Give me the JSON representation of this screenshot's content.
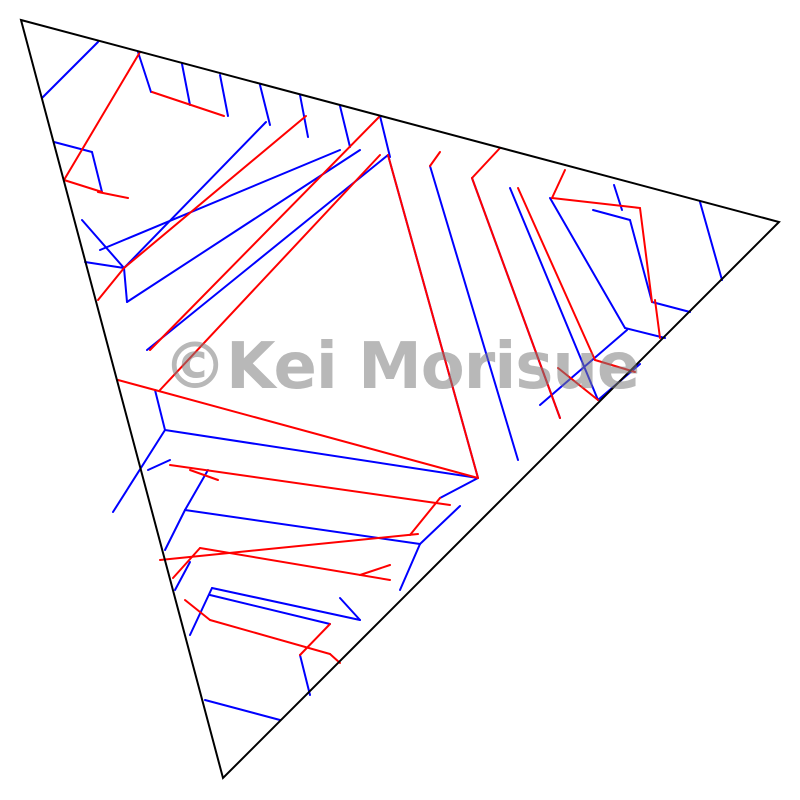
{
  "diagram": {
    "type": "origami-crease-pattern",
    "line_colors": {
      "border": "#000000",
      "mountain": "#ff0000",
      "valley": "#0000ff"
    }
  },
  "watermark": {
    "text": "©Kei Morisue"
  }
}
